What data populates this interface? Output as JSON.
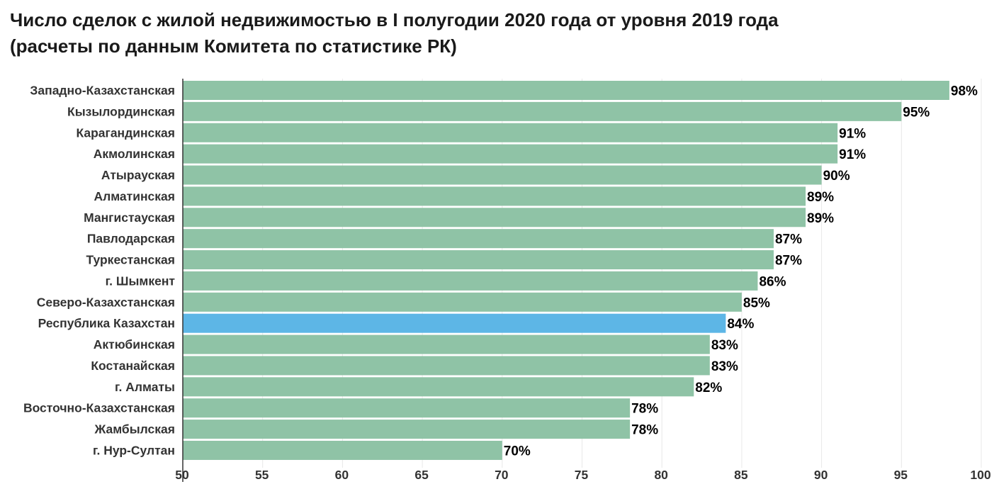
{
  "title_lines": [
    "Число сделок с жилой недвижимостью в I полугодии 2020 года от уровня 2019 года",
    "(расчеты по данным Комитета по статистике РК)"
  ],
  "colors": {
    "bar": "#8fc3a6",
    "highlight_bar": "#5db6e6",
    "grid": "#e8e8e8",
    "axis": "#333333"
  },
  "chart_data": {
    "type": "bar",
    "orientation": "horizontal",
    "title": "Число сделок с жилой недвижимостью в I полугодии 2020 года от уровня 2019 года (расчеты по данным Комитета по статистике РК)",
    "categories": [
      "Западно-Казахстанская",
      "Кызылординская",
      "Карагандинская",
      "Акмолинская",
      "Атырауская",
      "Алматинская",
      "Мангистауская",
      "Павлодарская",
      "Туркестанская",
      "г. Шымкент",
      "Северо-Казахстанская",
      "Республика Казахстан",
      "Актюбинская",
      "Костанайская",
      "г. Алматы",
      "Восточно-Казахстанская",
      "Жамбылская",
      "г. Нур-Султан"
    ],
    "values": [
      98,
      95,
      91,
      91,
      90,
      89,
      89,
      87,
      87,
      86,
      85,
      84,
      83,
      83,
      82,
      78,
      78,
      70
    ],
    "value_labels": [
      "98%",
      "95%",
      "91%",
      "91%",
      "90%",
      "89%",
      "89%",
      "87%",
      "87%",
      "86%",
      "85%",
      "84%",
      "83%",
      "83%",
      "82%",
      "78%",
      "78%",
      "70%"
    ],
    "highlight": "Республика Казахстан",
    "xlim": [
      50,
      100
    ],
    "xticks": [
      50,
      55,
      60,
      65,
      70,
      75,
      80,
      85,
      90,
      95,
      100
    ],
    "grid": true
  }
}
